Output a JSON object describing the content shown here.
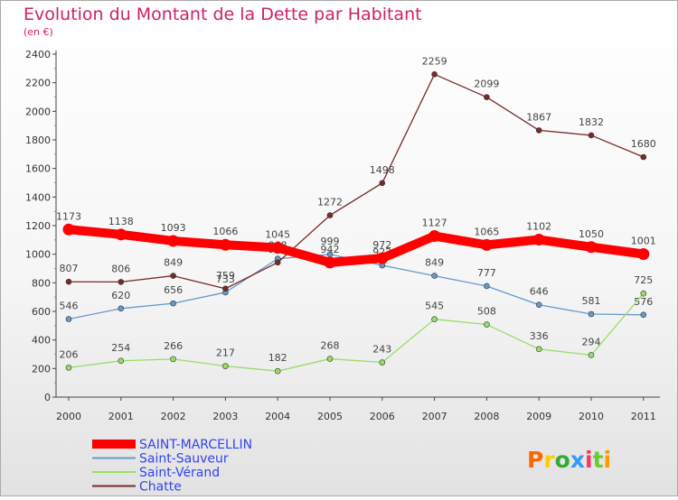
{
  "chart_data": {
    "type": "line",
    "title": "Evolution du Montant de la Dette par Habitant",
    "subtitle": "(en €)",
    "categories": [
      "2000",
      "2001",
      "2002",
      "2003",
      "2004",
      "2005",
      "2006",
      "2007",
      "2008",
      "2009",
      "2010",
      "2011"
    ],
    "ylim": [
      0,
      2400
    ],
    "yticks": [
      0,
      200,
      400,
      600,
      800,
      1000,
      1200,
      1400,
      1600,
      1800,
      2000,
      2200,
      2400
    ],
    "grid": false,
    "legend_position": "bottom-left",
    "series": [
      {
        "name": "SAINT-MARCELLIN",
        "color": "#ff0000",
        "emphasis": true,
        "values": [
          1173,
          1138,
          1093,
          1066,
          1045,
          942,
          972,
          1127,
          1065,
          1102,
          1050,
          1001
        ]
      },
      {
        "name": "Saint-Sauveur",
        "color": "#6699cc",
        "values": [
          546,
          620,
          656,
          733,
          968,
          999,
          922,
          849,
          777,
          646,
          581,
          576
        ]
      },
      {
        "name": "Saint-Vérand",
        "color": "#99dd66",
        "values": [
          206,
          254,
          266,
          217,
          182,
          268,
          243,
          545,
          508,
          336,
          294,
          725
        ]
      },
      {
        "name": "Chatte",
        "color": "#7a2a2a",
        "values": [
          807,
          806,
          849,
          759,
          942,
          1272,
          1498,
          2259,
          2099,
          1867,
          1832,
          1680
        ]
      }
    ]
  },
  "brand": {
    "logo_text": "Proxiti",
    "logo_colors": [
      "#ff6600",
      "#ffcc00",
      "#33aa33",
      "#3399ff",
      "#ff3366",
      "#66cc33",
      "#ff9900"
    ]
  }
}
